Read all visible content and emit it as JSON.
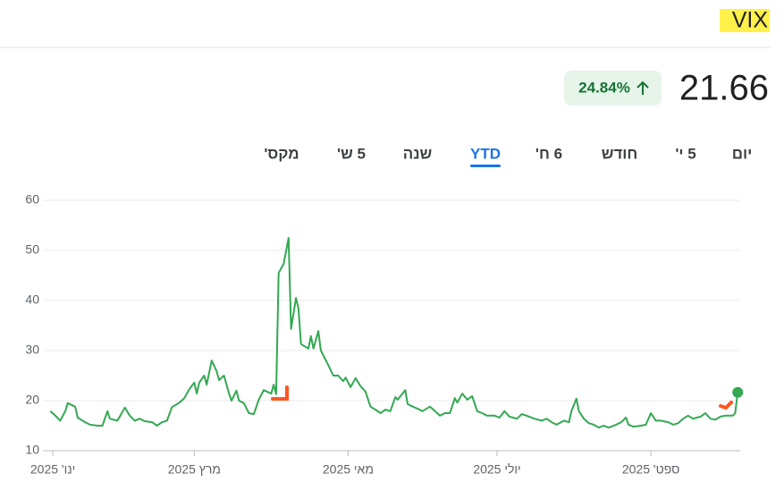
{
  "header": {
    "symbol": "VIX",
    "price": "21.66",
    "change": "24.84%"
  },
  "tabs": [
    "יום",
    "5 י'",
    "חודש",
    "6 ח'",
    "YTD",
    "שנה",
    "5 ש'",
    "מקס'"
  ],
  "active_tab": 4,
  "chart_data": {
    "type": "line",
    "color": "#34a853",
    "grid": true,
    "x": [
      1,
      3,
      5,
      7,
      8,
      11,
      12,
      15,
      17,
      20,
      22,
      24,
      25,
      28,
      29,
      31,
      33,
      35,
      37,
      39,
      42,
      44,
      46,
      48,
      50,
      53,
      55,
      57,
      59,
      60,
      61,
      63,
      64,
      66,
      68,
      69,
      71,
      73,
      74,
      76,
      77,
      79,
      81,
      83,
      85,
      87,
      90,
      91,
      92,
      93,
      95,
      97,
      98,
      100,
      101,
      102,
      105,
      106,
      107,
      109,
      110,
      113,
      115,
      117,
      119,
      120,
      122,
      124,
      126,
      128,
      130,
      132,
      134,
      136,
      138,
      140,
      141,
      144,
      145,
      147,
      149,
      151,
      154,
      156,
      158,
      160,
      162,
      164,
      165,
      167,
      169,
      171,
      173,
      175,
      177,
      180,
      182,
      184,
      186,
      189,
      191,
      194,
      196,
      199,
      201,
      203,
      205,
      208,
      210,
      211,
      213,
      214,
      216,
      218,
      220,
      222,
      224,
      226,
      229,
      231,
      233,
      234,
      236,
      239,
      241,
      243,
      245,
      247,
      250,
      252,
      254,
      256,
      258,
      260,
      263,
      265,
      267,
      269,
      271,
      273,
      276,
      277,
      278
    ],
    "values": [
      17.9,
      17,
      16,
      17.9,
      19.5,
      18.8,
      16.6,
      15.7,
      15.2,
      15,
      15,
      17.9,
      16.4,
      16,
      16.8,
      18.6,
      17,
      16,
      16.4,
      15.9,
      15.7,
      15,
      15.7,
      16,
      18.7,
      19.6,
      20.5,
      22.3,
      23.6,
      21.4,
      23.6,
      25,
      23.2,
      28,
      25.9,
      24.1,
      25,
      21.4,
      20,
      22,
      20,
      19.5,
      17.5,
      17.3,
      20.2,
      22.1,
      21.4,
      23.2,
      21.3,
      45.5,
      47.3,
      52.5,
      34.3,
      40.5,
      38.4,
      31.3,
      30.4,
      32.9,
      30.4,
      33.9,
      30,
      27.1,
      25,
      25,
      23.9,
      24.6,
      22.7,
      24.5,
      22.9,
      21.8,
      18.8,
      18.2,
      17.5,
      18.2,
      17.9,
      20.7,
      20.2,
      22.1,
      19.3,
      18.8,
      18.4,
      17.9,
      18.8,
      17.9,
      17,
      17.5,
      17.5,
      20.5,
      19.6,
      21.4,
      20.2,
      20.9,
      17.9,
      17.5,
      17,
      17,
      16.6,
      17.9,
      16.8,
      16.4,
      17.3,
      16.8,
      16.4,
      16,
      16.4,
      15.7,
      15.2,
      16,
      15.7,
      17.9,
      20.4,
      17.9,
      16.4,
      15.5,
      15.2,
      14.6,
      15,
      14.6,
      15.2,
      15.7,
      16.6,
      15.2,
      14.8,
      15,
      15.2,
      17.5,
      16,
      16,
      15.7,
      15.2,
      15.5,
      16.4,
      17,
      16.4,
      16.8,
      17.5,
      16.4,
      16.2,
      16.8,
      17,
      17,
      17.5,
      21.66
    ],
    "xlim": [
      -2,
      279
    ],
    "ylim": [
      10,
      60
    ],
    "yticks": [
      10,
      20,
      30,
      40,
      50,
      60
    ],
    "xticks": [
      {
        "value": 2,
        "label": "ינו' 2025"
      },
      {
        "value": 59,
        "label": "מרץ 2025"
      },
      {
        "value": 121,
        "label": "מאי 2025"
      },
      {
        "value": 181,
        "label": "יולי 2025"
      },
      {
        "value": 243,
        "label": "ספט' 2025"
      }
    ]
  }
}
